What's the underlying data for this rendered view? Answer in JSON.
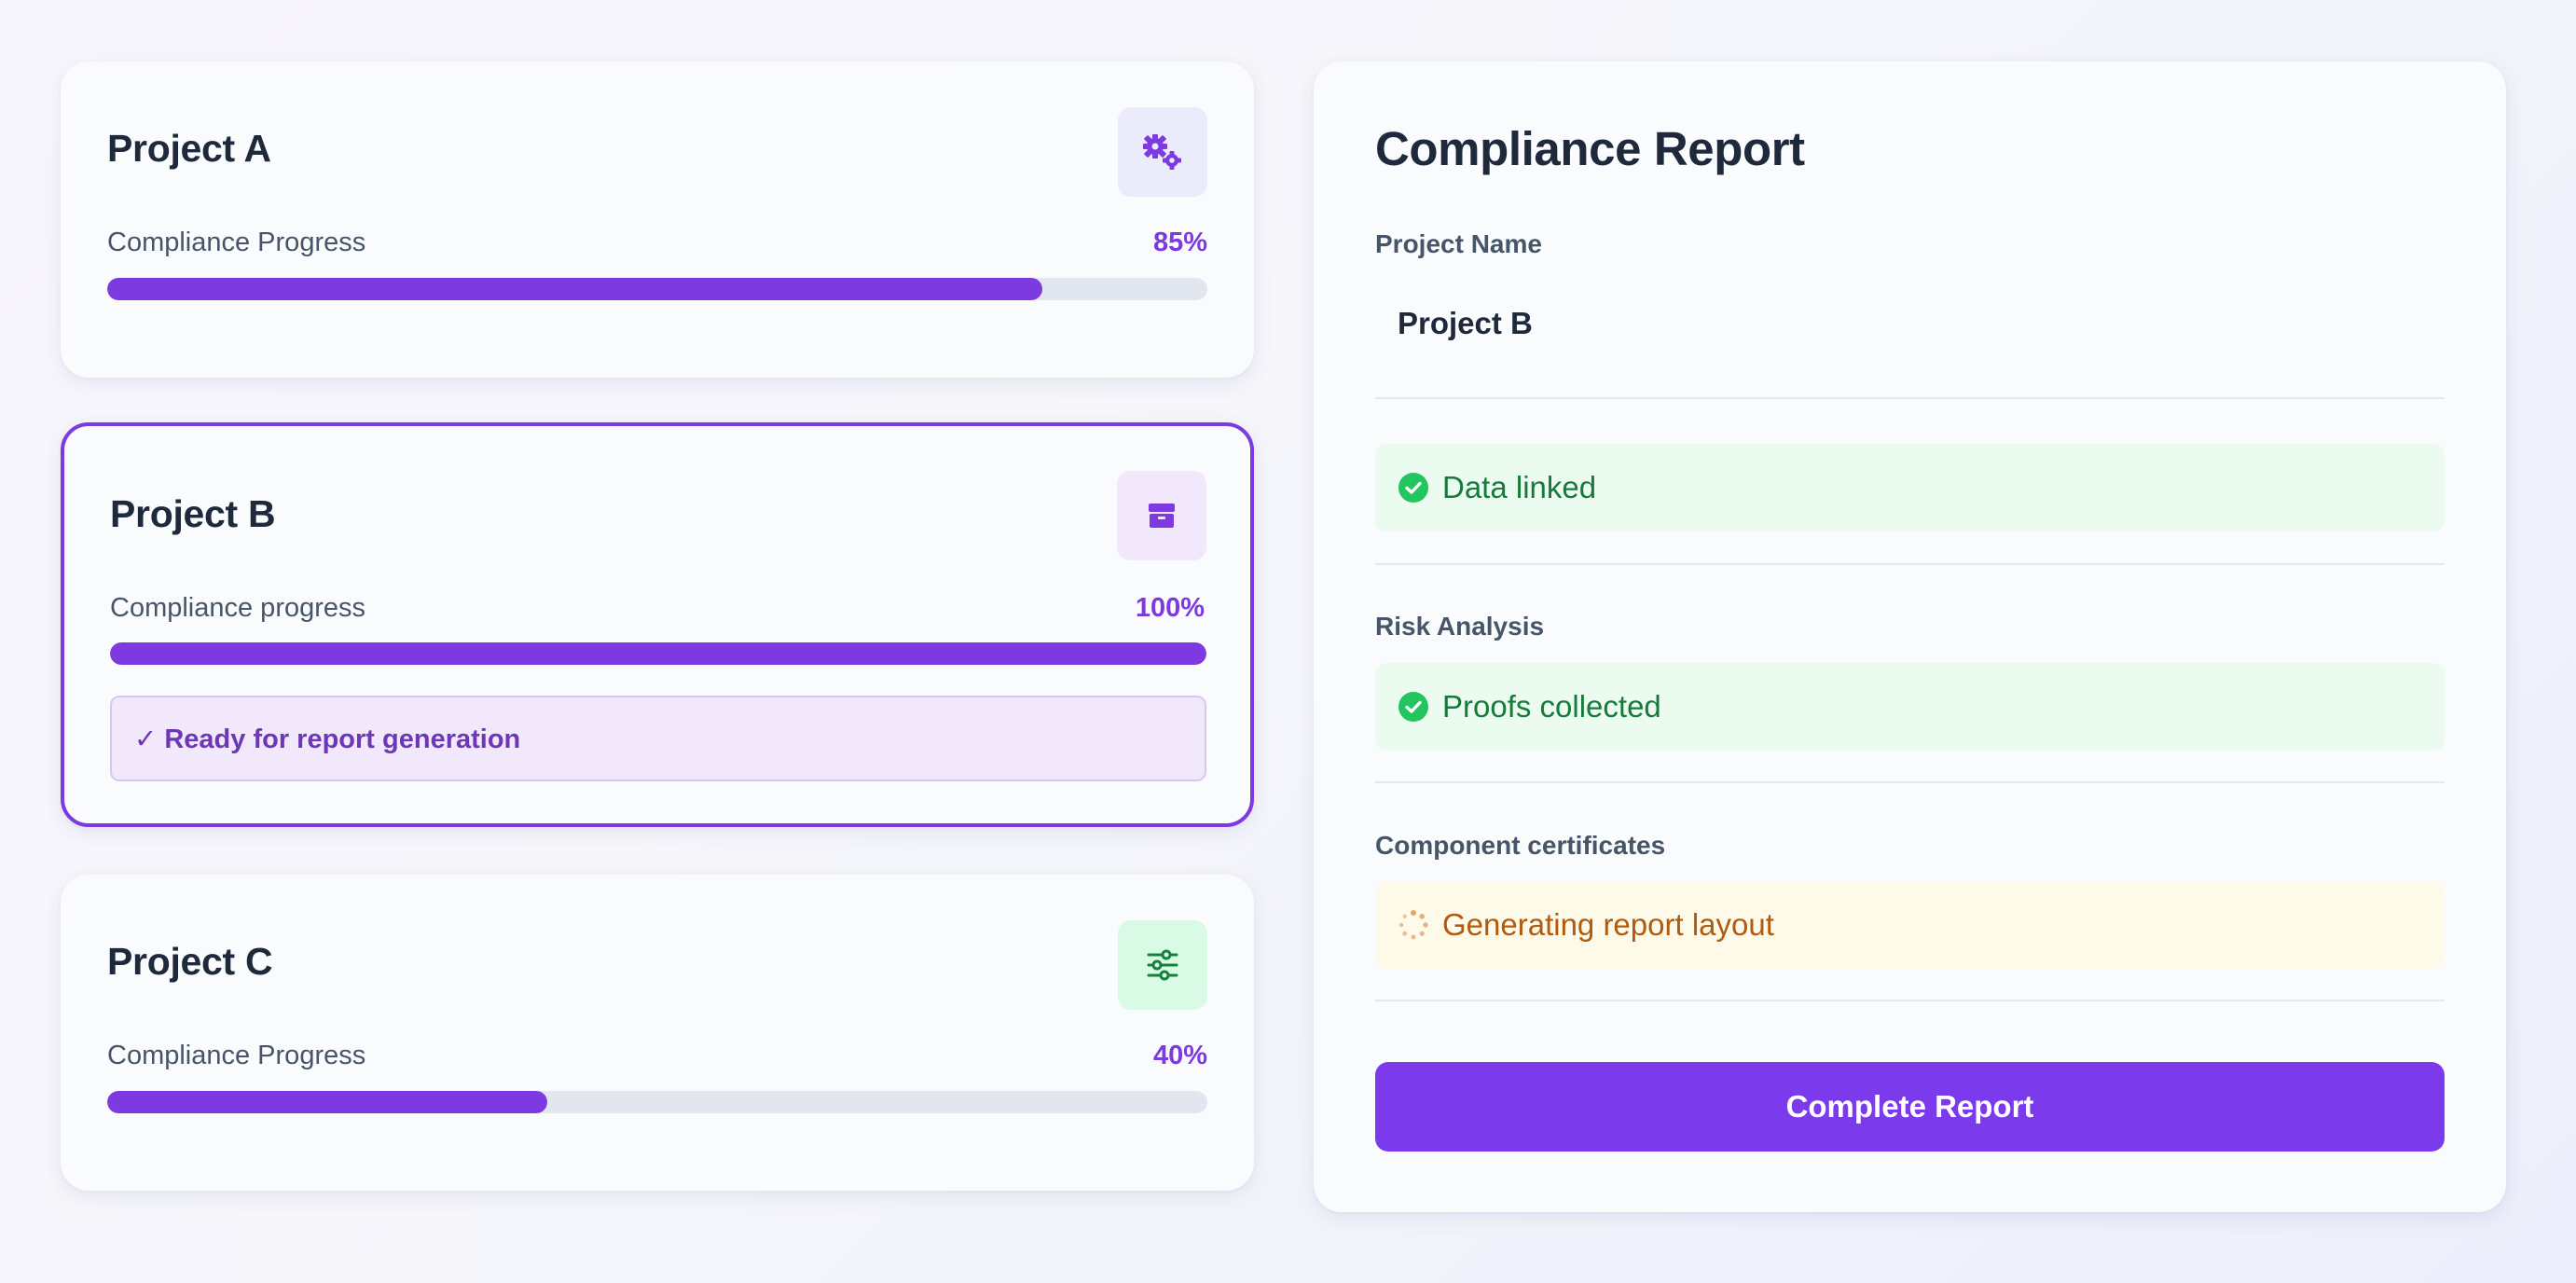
{
  "projects": [
    {
      "name": "Project A",
      "progress_label": "Compliance Progress",
      "progress_text": "85%",
      "progress_value": 85,
      "icon": "cogs-icon"
    },
    {
      "name": "Project B",
      "progress_label": "Compliance progress",
      "progress_text": "100%",
      "progress_value": 100,
      "icon": "box-icon",
      "ready_text": "✓ Ready for report generation",
      "selected": true
    },
    {
      "name": "Project C",
      "progress_label": "Compliance Progress",
      "progress_text": "40%",
      "progress_value": 40,
      "icon": "sliders-icon"
    }
  ],
  "report": {
    "title": "Compliance Report",
    "project_name_label": "Project Name",
    "project_name_value": "Project B",
    "data_status": "Data linked",
    "risk_label": "Risk Analysis",
    "risk_status": "Proofs collected",
    "certificates_label": "Component certificates",
    "certificates_status": "Generating report layout",
    "button_label": "Complete Report"
  },
  "colors": {
    "accent": "#7c3aed",
    "success": "#22c55e",
    "pending": "#b25a0f"
  }
}
